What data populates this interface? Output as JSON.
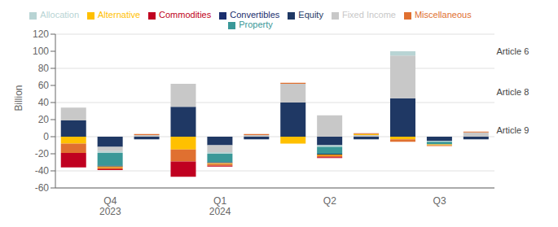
{
  "chart_data": {
    "type": "bar",
    "stacked": true,
    "grid": true,
    "legend": "top",
    "ylabel": "Billion",
    "categories": [
      null,
      "Q4\n2023",
      null,
      null,
      "Q1\n2024",
      null,
      null,
      "Q2",
      null,
      null,
      "Q3",
      null
    ],
    "ylim": [
      -60,
      120
    ],
    "yticks": [
      -60,
      -40,
      -20,
      0,
      20,
      40,
      60,
      80,
      100,
      120
    ],
    "series": [
      {
        "name": "Equity",
        "color": "#1f3864",
        "values": [
          19,
          -12,
          -3,
          35,
          -10,
          -3,
          40,
          -10,
          -3,
          45,
          -5,
          -3
        ]
      },
      {
        "name": "Fixed Income",
        "color": "#c8c8c8",
        "values": [
          15,
          -5,
          2,
          27,
          -8,
          2,
          22,
          25,
          2,
          50,
          0,
          5
        ]
      },
      {
        "name": "Allocation",
        "color": "#b8d4d4",
        "values": [
          0,
          -2,
          0,
          0,
          -2,
          0,
          0,
          -2,
          0,
          5,
          -1,
          0
        ]
      },
      {
        "name": "Property",
        "color": "#3a9898",
        "values": [
          0,
          -15,
          0,
          0,
          -10,
          0,
          0,
          -8,
          0,
          0,
          -3,
          0
        ]
      },
      {
        "name": "Convertibles",
        "color": "#1a2e6e",
        "values": [
          0,
          -1,
          0,
          0,
          -1,
          0,
          0,
          -1,
          0,
          0,
          0,
          0
        ]
      },
      {
        "name": "Alternative",
        "color": "#ffc000",
        "values": [
          -8,
          -1,
          0,
          -15,
          -1,
          0,
          -8,
          -1,
          1,
          -3,
          -1,
          0
        ]
      },
      {
        "name": "Miscellaneous",
        "color": "#e07030",
        "values": [
          -11,
          -2,
          1,
          -14,
          -2,
          1,
          1,
          -2,
          1,
          -3,
          -1,
          1
        ]
      },
      {
        "name": "Commodities",
        "color": "#c00020",
        "values": [
          -17,
          -1,
          0,
          -18,
          -1,
          0,
          0,
          -1,
          0,
          0,
          0,
          0
        ]
      }
    ],
    "annotations": [
      {
        "text": "Article 6",
        "y": 100
      },
      {
        "text": "Article 8",
        "y": 52
      },
      {
        "text": "Article 9",
        "y": 8
      }
    ]
  }
}
